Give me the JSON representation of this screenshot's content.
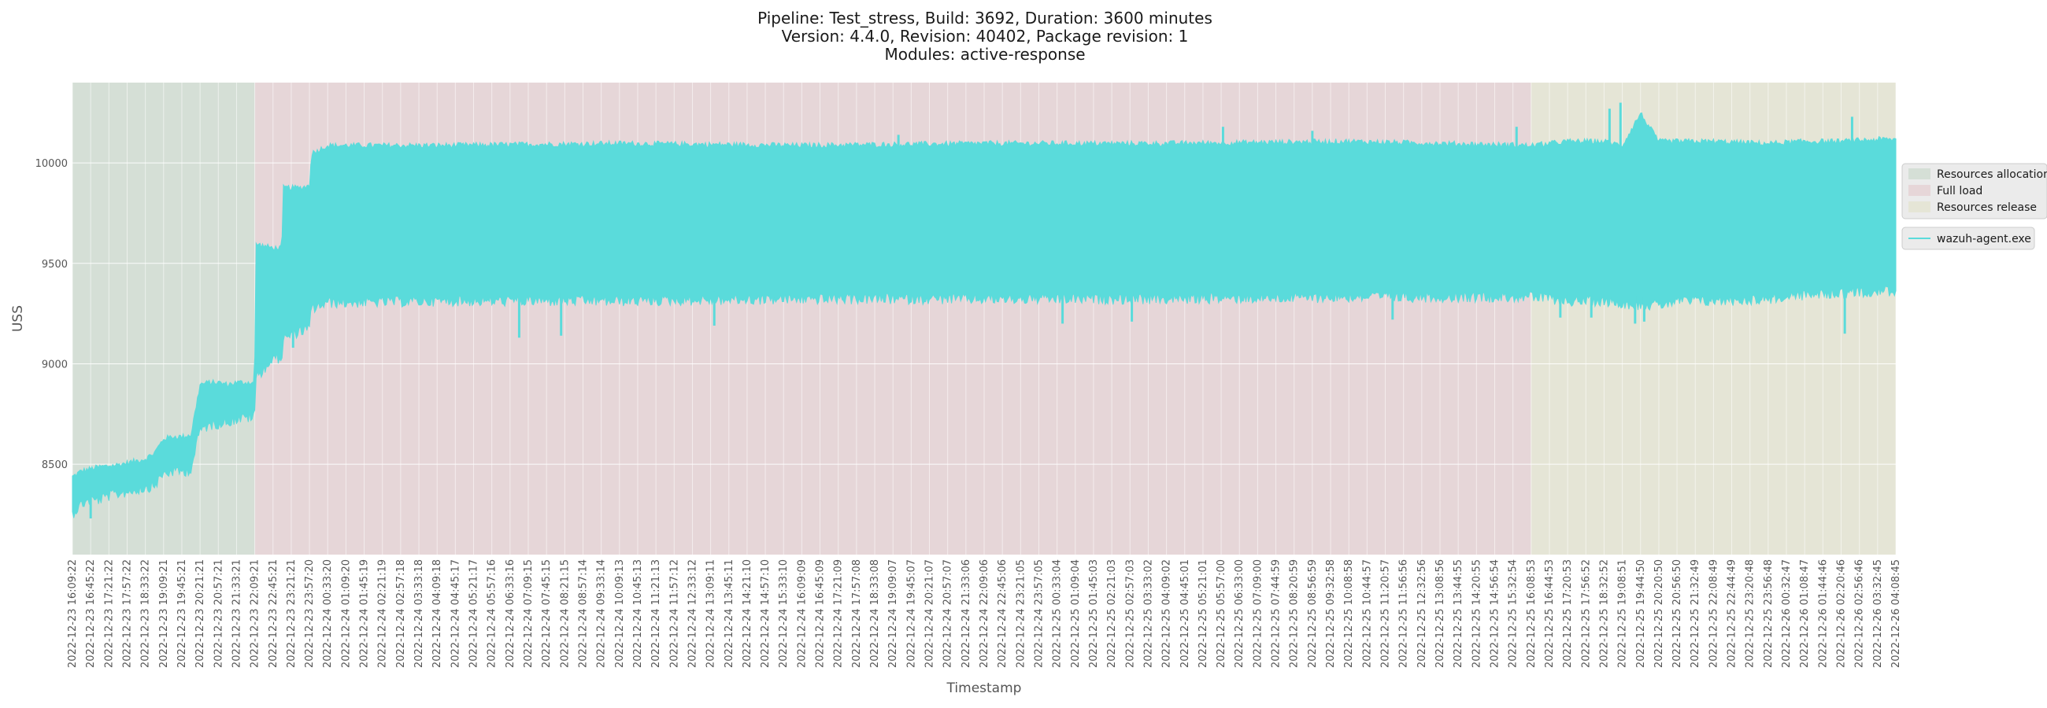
{
  "chart_data": {
    "type": "area",
    "title_lines": [
      "Pipeline: Test_stress, Build: 3692, Duration: 3600 minutes",
      "Version: 4.4.0, Revision: 40402, Package revision: 1",
      "Modules: active-response"
    ],
    "xlabel": "Timestamp",
    "ylabel": "USS",
    "ylim": [
      8050,
      10400
    ],
    "yticks": [
      8500,
      9000,
      9500,
      10000
    ],
    "grid": true,
    "legend_position": "right",
    "x_ticks": [
      "2022-12-23 16:09:22",
      "2022-12-23 16:45:22",
      "2022-12-23 17:21:22",
      "2022-12-23 17:57:22",
      "2022-12-23 18:33:22",
      "2022-12-23 19:09:21",
      "2022-12-23 19:45:21",
      "2022-12-23 20:21:21",
      "2022-12-23 20:57:21",
      "2022-12-23 21:33:21",
      "2022-12-23 22:09:21",
      "2022-12-23 22:45:21",
      "2022-12-23 23:21:21",
      "2022-12-23 23:57:20",
      "2022-12-24 00:33:20",
      "2022-12-24 01:09:20",
      "2022-12-24 01:45:19",
      "2022-12-24 02:21:19",
      "2022-12-24 02:57:18",
      "2022-12-24 03:33:18",
      "2022-12-24 04:09:18",
      "2022-12-24 04:45:17",
      "2022-12-24 05:21:17",
      "2022-12-24 05:57:16",
      "2022-12-24 06:33:16",
      "2022-12-24 07:09:15",
      "2022-12-24 07:45:15",
      "2022-12-24 08:21:15",
      "2022-12-24 08:57:14",
      "2022-12-24 09:33:14",
      "2022-12-24 10:09:13",
      "2022-12-24 10:45:13",
      "2022-12-24 11:21:13",
      "2022-12-24 11:57:12",
      "2022-12-24 12:33:12",
      "2022-12-24 13:09:11",
      "2022-12-24 13:45:11",
      "2022-12-24 14:21:10",
      "2022-12-24 14:57:10",
      "2022-12-24 15:33:10",
      "2022-12-24 16:09:09",
      "2022-12-24 16:45:09",
      "2022-12-24 17:21:09",
      "2022-12-24 17:57:08",
      "2022-12-24 18:33:08",
      "2022-12-24 19:09:07",
      "2022-12-24 19:45:07",
      "2022-12-24 20:21:07",
      "2022-12-24 20:57:07",
      "2022-12-24 21:33:06",
      "2022-12-24 22:09:06",
      "2022-12-24 22:45:06",
      "2022-12-24 23:21:05",
      "2022-12-24 23:57:05",
      "2022-12-25 00:33:04",
      "2022-12-25 01:09:04",
      "2022-12-25 01:45:03",
      "2022-12-25 02:21:03",
      "2022-12-25 02:57:03",
      "2022-12-25 03:33:02",
      "2022-12-25 04:09:02",
      "2022-12-25 04:45:01",
      "2022-12-25 05:21:01",
      "2022-12-25 05:57:00",
      "2022-12-25 06:33:00",
      "2022-12-25 07:09:00",
      "2022-12-25 07:44:59",
      "2022-12-25 08:20:59",
      "2022-12-25 08:56:59",
      "2022-12-25 09:32:58",
      "2022-12-25 10:08:58",
      "2022-12-25 10:44:57",
      "2022-12-25 11:20:57",
      "2022-12-25 11:56:56",
      "2022-12-25 12:32:56",
      "2022-12-25 13:08:56",
      "2022-12-25 13:44:55",
      "2022-12-25 14:20:55",
      "2022-12-25 14:56:54",
      "2022-12-25 15:32:54",
      "2022-12-25 16:08:53",
      "2022-12-25 16:44:53",
      "2022-12-25 17:20:53",
      "2022-12-25 17:56:52",
      "2022-12-25 18:32:52",
      "2022-12-25 19:08:51",
      "2022-12-25 19:44:50",
      "2022-12-25 20:20:50",
      "2022-12-25 20:56:50",
      "2022-12-25 21:32:49",
      "2022-12-25 22:08:49",
      "2022-12-25 22:44:49",
      "2022-12-25 23:20:48",
      "2022-12-25 23:56:48",
      "2022-12-26 00:32:47",
      "2022-12-26 01:08:47",
      "2022-12-26 01:44:46",
      "2022-12-26 02:20:46",
      "2022-12-26 02:56:46",
      "2022-12-26 03:32:45",
      "2022-12-26 04:08:45"
    ],
    "phases": [
      {
        "name": "Resources allocation",
        "start_tick": 0,
        "end_tick": 10,
        "color": "#d5dfd6"
      },
      {
        "name": "Full load",
        "start_tick": 10,
        "end_tick": 80,
        "color": "#e6d6d8"
      },
      {
        "name": "Resources release",
        "start_tick": 80,
        "end_tick": 100,
        "color": "#e5e5d6"
      }
    ],
    "series": [
      {
        "name": "wazuh-agent.exe",
        "color": "#5adbdb",
        "x": [
          0,
          0.5,
          1,
          1.5,
          2,
          2.5,
          3,
          3.5,
          4,
          4.5,
          5,
          5.5,
          6,
          6.5,
          7,
          7.5,
          8,
          8.5,
          9,
          9.5,
          9.99,
          10.05,
          10.5,
          11,
          11.49,
          11.55,
          12,
          12.5,
          13,
          13.1,
          14,
          20,
          30,
          40,
          50,
          60,
          70,
          80,
          82,
          84,
          85,
          86,
          87,
          88,
          90,
          93,
          95,
          97,
          99,
          100
        ],
        "upper": [
          8440,
          8470,
          8480,
          8490,
          8495,
          8500,
          8510,
          8520,
          8530,
          8560,
          8630,
          8640,
          8640,
          8650,
          8900,
          8910,
          8910,
          8900,
          8910,
          8910,
          8910,
          9600,
          9590,
          9580,
          9580,
          9880,
          9880,
          9880,
          9890,
          10050,
          10090,
          10090,
          10100,
          10090,
          10100,
          10100,
          10110,
          10090,
          10110,
          10110,
          10090,
          10250,
          10110,
          10110,
          10110,
          10100,
          10110,
          10110,
          10120,
          10120
        ],
        "lower": [
          8280,
          8330,
          8350,
          8350,
          8370,
          8380,
          8390,
          8400,
          8410,
          8420,
          8480,
          8490,
          8490,
          8500,
          8700,
          8720,
          8730,
          8740,
          8750,
          8760,
          8760,
          8960,
          9000,
          9050,
          9060,
          9150,
          9170,
          9190,
          9200,
          9300,
          9330,
          9340,
          9340,
          9350,
          9350,
          9350,
          9360,
          9360,
          9340,
          9340,
          9330,
          9320,
          9320,
          9340,
          9340,
          9350,
          9370,
          9380,
          9390,
          9390
        ],
        "upper_spikes": [
          {
            "x": 45.3,
            "y": 10140
          },
          {
            "x": 63.1,
            "y": 10180
          },
          {
            "x": 68.0,
            "y": 10160
          },
          {
            "x": 79.2,
            "y": 10180
          },
          {
            "x": 84.3,
            "y": 10270
          },
          {
            "x": 84.9,
            "y": 10300
          },
          {
            "x": 97.6,
            "y": 10230
          }
        ],
        "lower_spikes": [
          {
            "x": 1.0,
            "y": 8230
          },
          {
            "x": 12.1,
            "y": 9080
          },
          {
            "x": 24.5,
            "y": 9130
          },
          {
            "x": 26.8,
            "y": 9140
          },
          {
            "x": 35.2,
            "y": 9190
          },
          {
            "x": 54.3,
            "y": 9200
          },
          {
            "x": 58.1,
            "y": 9210
          },
          {
            "x": 72.4,
            "y": 9220
          },
          {
            "x": 81.6,
            "y": 9230
          },
          {
            "x": 83.3,
            "y": 9230
          },
          {
            "x": 85.7,
            "y": 9200
          },
          {
            "x": 86.2,
            "y": 9210
          },
          {
            "x": 97.2,
            "y": 9150
          }
        ]
      }
    ]
  }
}
